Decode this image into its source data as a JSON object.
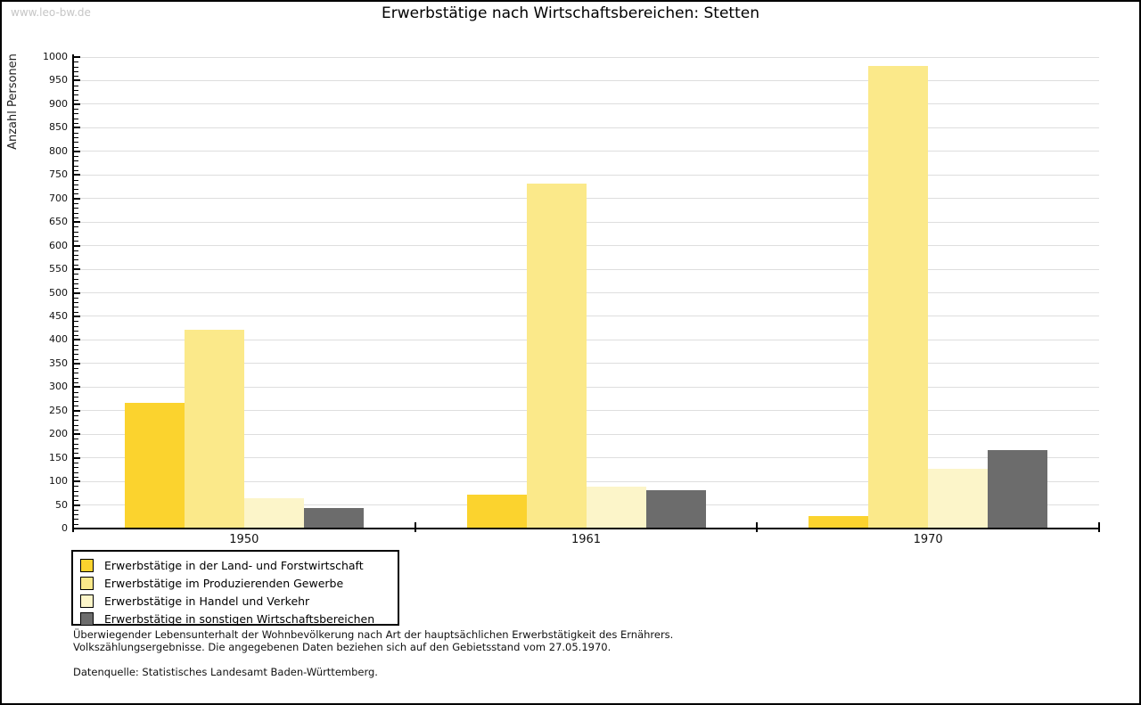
{
  "watermark": "www.leo-bw.de",
  "chart_data": {
    "type": "bar",
    "title": "Erwerbstätige nach Wirtschaftsbereichen: Stetten",
    "ylabel": "Anzahl Personen",
    "categories": [
      "1950",
      "1961",
      "1970"
    ],
    "series": [
      {
        "name": "Erwerbstätige in der Land- und Forstwirtschaft",
        "color": "#FBD32E",
        "values": [
          265,
          70,
          24
        ]
      },
      {
        "name": "Erwerbstätige im Produzierenden Gewerbe",
        "color": "#FBE98A",
        "values": [
          420,
          730,
          980
        ]
      },
      {
        "name": "Erwerbstätige in Handel und Verkehr",
        "color": "#FCF5C9",
        "values": [
          62,
          87,
          125
        ]
      },
      {
        "name": "Erwerbstätige in sonstigen Wirtschaftsbereichen",
        "color": "#6C6C6C",
        "values": [
          42,
          80,
          164
        ]
      }
    ],
    "ylim": [
      0,
      1000
    ],
    "ytick_step": 50,
    "yminor_step": 10,
    "grid": true,
    "legend_position": "bottom-left"
  },
  "footnotes": {
    "line1": "Überwiegender Lebensunterhalt der Wohnbevölkerung nach Art der hauptsächlichen Erwerbstätigkeit des Ernährers.",
    "line2": "Volkszählungsergebnisse. Die angegebenen Daten beziehen sich auf den Gebietsstand vom 27.05.1970.",
    "source": "Datenquelle: Statistisches Landesamt Baden-Württemberg."
  },
  "colors": {
    "grid": "#DEDEDE",
    "axis": "#000000",
    "watermark": "#C6C6C6"
  }
}
